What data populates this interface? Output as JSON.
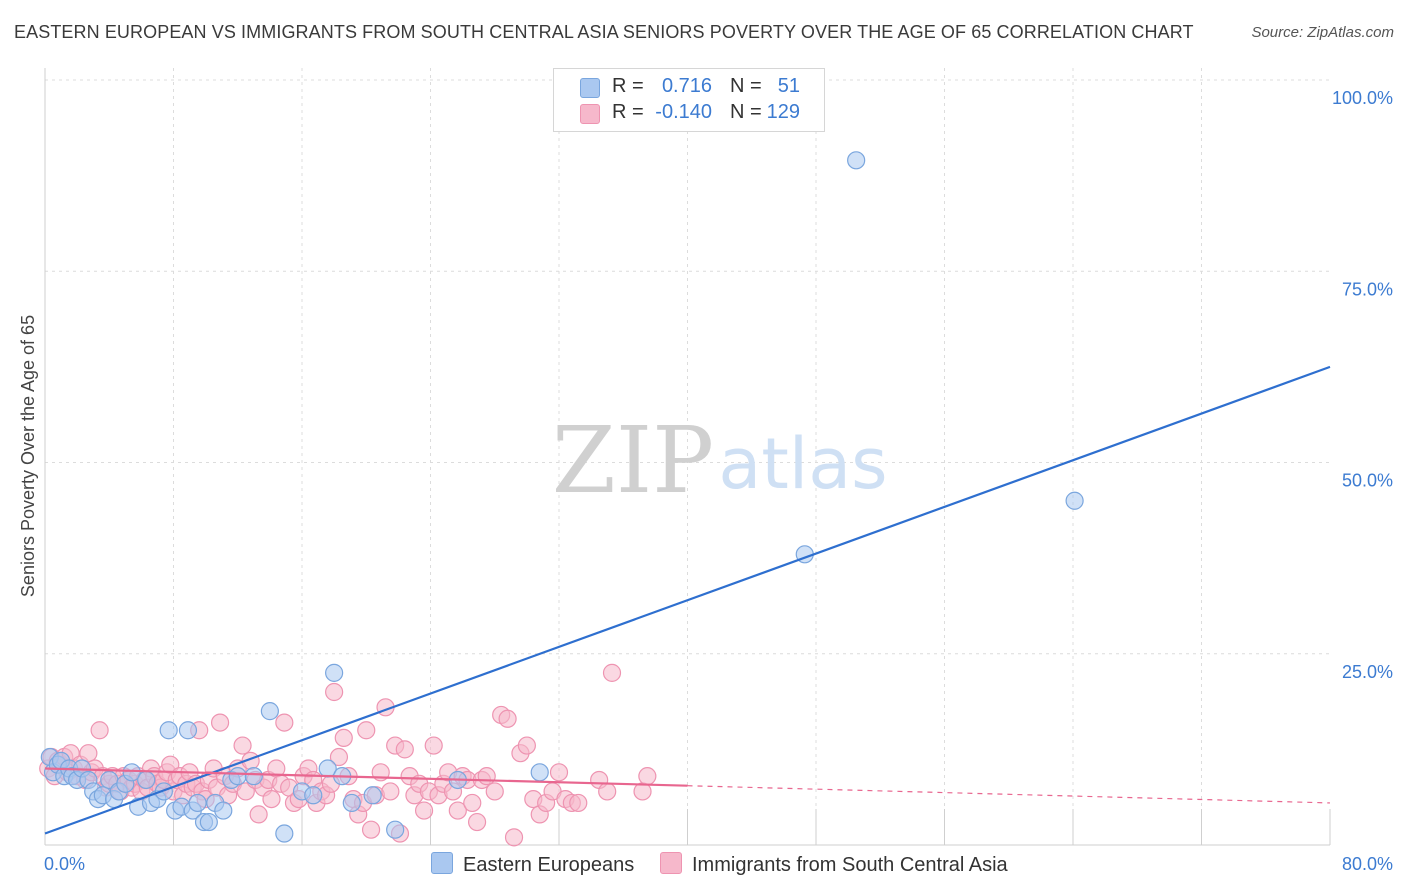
{
  "header": {
    "title": "EASTERN EUROPEAN VS IMMIGRANTS FROM SOUTH CENTRAL ASIA SENIORS POVERTY OVER THE AGE OF 65 CORRELATION CHART",
    "source": "Source: ZipAtlas.com"
  },
  "watermark": {
    "zip": "ZIP",
    "atlas": "atlas"
  },
  "legend": {
    "blue": {
      "r_label": "R =",
      "r_value": "0.716",
      "n_label": "N =",
      "n_value": "51"
    },
    "pink": {
      "r_label": "R =",
      "r_value": "-0.140",
      "n_label": "N =",
      "n_value": "129"
    }
  },
  "colors": {
    "blue_fill": "#aac8f0",
    "blue_stroke": "#7aa6de",
    "blue_line": "#2e6fcf",
    "pink_fill": "#f6b8cb",
    "pink_stroke": "#ee94b1",
    "pink_line": "#e8668f",
    "grid": "#dcdcdc",
    "axis_text": "#3c7bd1"
  },
  "chart_data": {
    "type": "scatter",
    "title": "EASTERN EUROPEAN VS IMMIGRANTS FROM SOUTH CENTRAL ASIA SENIORS POVERTY OVER THE AGE OF 65 CORRELATION CHART",
    "xlabel": "",
    "ylabel": "Seniors Poverty Over the Age of 65",
    "xlim": [
      0,
      80
    ],
    "ylim": [
      0,
      100
    ],
    "x_tick_labels": [
      "0.0%",
      "80.0%"
    ],
    "y_tick_labels": [
      "100.0%",
      "75.0%",
      "50.0%",
      "25.0%"
    ],
    "y_ticks": [
      100,
      75,
      50,
      25
    ],
    "grid": true,
    "series": [
      {
        "name": "Eastern Europeans",
        "color": "blue",
        "r": 0.716,
        "n": 51,
        "trend": {
          "x": [
            0,
            80
          ],
          "y": [
            1.5,
            62.5
          ],
          "dashed_from": null
        },
        "points": [
          [
            0.3,
            11.5
          ],
          [
            0.5,
            9.5
          ],
          [
            0.8,
            10.5
          ],
          [
            1.0,
            11.0
          ],
          [
            1.2,
            9.0
          ],
          [
            1.5,
            10.0
          ],
          [
            1.7,
            9.0
          ],
          [
            2.0,
            8.5
          ],
          [
            2.3,
            10.0
          ],
          [
            2.7,
            8.5
          ],
          [
            3.0,
            7.0
          ],
          [
            3.3,
            6.0
          ],
          [
            3.6,
            6.5
          ],
          [
            4.0,
            8.5
          ],
          [
            4.3,
            6.0
          ],
          [
            4.6,
            7.0
          ],
          [
            5.0,
            8.0
          ],
          [
            5.4,
            9.5
          ],
          [
            5.8,
            5.0
          ],
          [
            6.3,
            8.5
          ],
          [
            6.6,
            5.5
          ],
          [
            7.0,
            6.0
          ],
          [
            7.4,
            7.0
          ],
          [
            7.7,
            15.0
          ],
          [
            8.1,
            4.5
          ],
          [
            8.5,
            5.0
          ],
          [
            8.9,
            15.0
          ],
          [
            9.2,
            4.5
          ],
          [
            9.5,
            5.5
          ],
          [
            9.9,
            3.0
          ],
          [
            10.2,
            3.0
          ],
          [
            10.6,
            5.5
          ],
          [
            11.1,
            4.5
          ],
          [
            11.6,
            8.5
          ],
          [
            12.0,
            9.0
          ],
          [
            14.0,
            17.5
          ],
          [
            14.9,
            1.5
          ],
          [
            16.0,
            7.0
          ],
          [
            16.7,
            6.5
          ],
          [
            17.6,
            10.0
          ],
          [
            18.0,
            22.5
          ],
          [
            18.5,
            9.0
          ],
          [
            19.1,
            5.5
          ],
          [
            20.4,
            6.5
          ],
          [
            21.8,
            2.0
          ],
          [
            25.7,
            8.5
          ],
          [
            30.8,
            9.5
          ],
          [
            50.5,
            89.5
          ],
          [
            47.3,
            38.0
          ],
          [
            64.1,
            45.0
          ],
          [
            13.0,
            9.0
          ]
        ]
      },
      {
        "name": "Immigrants from South Central Asia",
        "color": "pink",
        "r": -0.14,
        "n": 129,
        "trend": {
          "x": [
            0,
            80
          ],
          "y": [
            10.0,
            5.5
          ],
          "dashed_from": 40
        },
        "points": [
          [
            0.2,
            10.0
          ],
          [
            0.4,
            11.5
          ],
          [
            0.6,
            9.0
          ],
          [
            0.8,
            11.0
          ],
          [
            1.0,
            10.5
          ],
          [
            1.2,
            11.5
          ],
          [
            1.4,
            9.5
          ],
          [
            1.6,
            12.0
          ],
          [
            1.8,
            10.0
          ],
          [
            2.0,
            9.0
          ],
          [
            2.2,
            10.5
          ],
          [
            2.5,
            8.5
          ],
          [
            2.7,
            12.0
          ],
          [
            2.9,
            9.5
          ],
          [
            3.1,
            10.0
          ],
          [
            3.4,
            15.0
          ],
          [
            3.6,
            9.0
          ],
          [
            3.8,
            7.5
          ],
          [
            4.0,
            8.0
          ],
          [
            4.2,
            9.0
          ],
          [
            4.5,
            8.0
          ],
          [
            4.7,
            7.0
          ],
          [
            4.9,
            9.0
          ],
          [
            5.2,
            8.5
          ],
          [
            5.4,
            7.5
          ],
          [
            5.6,
            8.0
          ],
          [
            5.8,
            9.0
          ],
          [
            6.0,
            7.0
          ],
          [
            6.2,
            8.5
          ],
          [
            6.4,
            7.5
          ],
          [
            6.6,
            10.0
          ],
          [
            6.8,
            9.0
          ],
          [
            7.0,
            8.0
          ],
          [
            7.2,
            7.5
          ],
          [
            7.4,
            8.5
          ],
          [
            7.6,
            9.5
          ],
          [
            7.8,
            10.5
          ],
          [
            8.0,
            7.0
          ],
          [
            8.2,
            8.5
          ],
          [
            8.4,
            9.0
          ],
          [
            8.6,
            6.5
          ],
          [
            8.8,
            8.0
          ],
          [
            9.0,
            9.5
          ],
          [
            9.2,
            7.5
          ],
          [
            9.4,
            8.0
          ],
          [
            9.6,
            15.0
          ],
          [
            9.8,
            7.0
          ],
          [
            10.0,
            6.0
          ],
          [
            10.2,
            8.5
          ],
          [
            10.5,
            10.0
          ],
          [
            10.7,
            7.5
          ],
          [
            10.9,
            16.0
          ],
          [
            11.2,
            9.0
          ],
          [
            11.4,
            6.5
          ],
          [
            11.7,
            8.0
          ],
          [
            12.0,
            10.0
          ],
          [
            12.3,
            13.0
          ],
          [
            12.5,
            7.0
          ],
          [
            12.8,
            11.0
          ],
          [
            13.1,
            8.5
          ],
          [
            13.3,
            4.0
          ],
          [
            13.6,
            7.5
          ],
          [
            13.9,
            8.5
          ],
          [
            14.1,
            6.0
          ],
          [
            14.4,
            10.0
          ],
          [
            14.7,
            8.0
          ],
          [
            14.9,
            16.0
          ],
          [
            15.2,
            7.5
          ],
          [
            15.5,
            5.5
          ],
          [
            15.8,
            6.0
          ],
          [
            16.1,
            9.0
          ],
          [
            16.4,
            10.0
          ],
          [
            16.7,
            8.5
          ],
          [
            16.9,
            5.5
          ],
          [
            17.2,
            7.0
          ],
          [
            17.5,
            6.5
          ],
          [
            17.8,
            8.0
          ],
          [
            18.0,
            20.0
          ],
          [
            18.3,
            11.5
          ],
          [
            18.6,
            14.0
          ],
          [
            18.9,
            9.0
          ],
          [
            19.2,
            6.0
          ],
          [
            19.5,
            4.0
          ],
          [
            19.8,
            5.5
          ],
          [
            20.0,
            15.0
          ],
          [
            20.3,
            2.0
          ],
          [
            20.6,
            6.5
          ],
          [
            20.9,
            9.5
          ],
          [
            21.2,
            18.0
          ],
          [
            21.5,
            7.0
          ],
          [
            21.8,
            13.0
          ],
          [
            22.1,
            1.5
          ],
          [
            22.4,
            12.5
          ],
          [
            22.7,
            9.0
          ],
          [
            23.0,
            6.5
          ],
          [
            23.3,
            8.0
          ],
          [
            23.6,
            4.5
          ],
          [
            23.9,
            7.0
          ],
          [
            24.2,
            13.0
          ],
          [
            24.5,
            6.5
          ],
          [
            24.8,
            8.0
          ],
          [
            25.1,
            9.5
          ],
          [
            25.4,
            7.0
          ],
          [
            25.7,
            4.5
          ],
          [
            26.0,
            9.0
          ],
          [
            26.3,
            8.5
          ],
          [
            26.6,
            5.5
          ],
          [
            26.9,
            3.0
          ],
          [
            27.2,
            8.5
          ],
          [
            27.5,
            9.0
          ],
          [
            28.0,
            7.0
          ],
          [
            28.4,
            17.0
          ],
          [
            28.8,
            16.5
          ],
          [
            29.2,
            1.0
          ],
          [
            29.6,
            12.0
          ],
          [
            30.0,
            13.0
          ],
          [
            30.4,
            6.0
          ],
          [
            30.8,
            4.0
          ],
          [
            31.2,
            5.5
          ],
          [
            31.6,
            7.0
          ],
          [
            32.0,
            9.5
          ],
          [
            32.4,
            6.0
          ],
          [
            32.8,
            5.5
          ],
          [
            33.2,
            5.5
          ],
          [
            34.5,
            8.5
          ],
          [
            35.0,
            7.0
          ],
          [
            35.3,
            22.5
          ],
          [
            37.2,
            7.0
          ],
          [
            37.5,
            9.0
          ]
        ]
      }
    ]
  },
  "bottom_legend": {
    "blue_label": "Eastern Europeans",
    "pink_label": "Immigrants from South Central Asia"
  }
}
